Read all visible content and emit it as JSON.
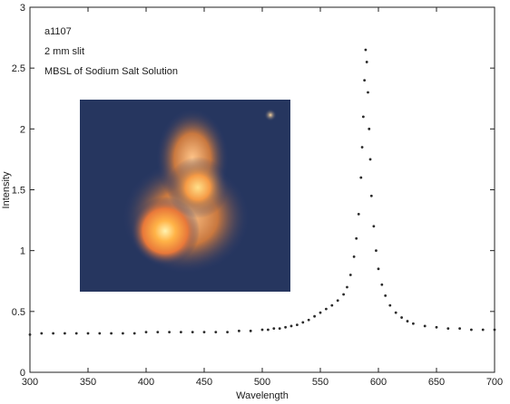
{
  "chart_data": {
    "type": "scatter",
    "xlabel": "Wavelength",
    "ylabel": "Intensity",
    "xlim": [
      300,
      700
    ],
    "ylim": [
      0,
      3
    ],
    "xticks": [
      300,
      350,
      400,
      450,
      500,
      550,
      600,
      650,
      700
    ],
    "yticks": [
      0,
      0.5,
      1,
      1.5,
      2,
      2.5,
      3
    ],
    "ytick_labels": [
      "0",
      "0.5",
      "1",
      "1.5",
      "2",
      "2.5",
      "3"
    ],
    "grid": false,
    "annotations": [
      "a1107",
      "2 mm slit",
      "MBSL of Sodium Salt Solution"
    ],
    "inset_image": "orange glowing bubble photo on dark blue background",
    "series": [
      {
        "points": [
          [
            300,
            0.31
          ],
          [
            310,
            0.32
          ],
          [
            320,
            0.32
          ],
          [
            330,
            0.32
          ],
          [
            340,
            0.32
          ],
          [
            350,
            0.32
          ],
          [
            360,
            0.32
          ],
          [
            370,
            0.32
          ],
          [
            380,
            0.32
          ],
          [
            390,
            0.32
          ],
          [
            400,
            0.33
          ],
          [
            410,
            0.33
          ],
          [
            420,
            0.33
          ],
          [
            430,
            0.33
          ],
          [
            440,
            0.33
          ],
          [
            450,
            0.33
          ],
          [
            460,
            0.33
          ],
          [
            470,
            0.33
          ],
          [
            480,
            0.34
          ],
          [
            490,
            0.34
          ],
          [
            500,
            0.35
          ],
          [
            505,
            0.35
          ],
          [
            510,
            0.36
          ],
          [
            515,
            0.36
          ],
          [
            520,
            0.37
          ],
          [
            525,
            0.38
          ],
          [
            530,
            0.39
          ],
          [
            535,
            0.41
          ],
          [
            540,
            0.43
          ],
          [
            545,
            0.46
          ],
          [
            550,
            0.49
          ],
          [
            555,
            0.52
          ],
          [
            560,
            0.55
          ],
          [
            565,
            0.59
          ],
          [
            570,
            0.64
          ],
          [
            573,
            0.7
          ],
          [
            576,
            0.8
          ],
          [
            579,
            0.95
          ],
          [
            581,
            1.1
          ],
          [
            583,
            1.3
          ],
          [
            585,
            1.6
          ],
          [
            586,
            1.85
          ],
          [
            587,
            2.1
          ],
          [
            588,
            2.4
          ],
          [
            589,
            2.65
          ],
          [
            590,
            2.55
          ],
          [
            591,
            2.3
          ],
          [
            592,
            2.0
          ],
          [
            593,
            1.75
          ],
          [
            594,
            1.45
          ],
          [
            596,
            1.2
          ],
          [
            598,
            1.0
          ],
          [
            600,
            0.85
          ],
          [
            603,
            0.72
          ],
          [
            606,
            0.63
          ],
          [
            610,
            0.55
          ],
          [
            615,
            0.49
          ],
          [
            620,
            0.45
          ],
          [
            625,
            0.42
          ],
          [
            630,
            0.4
          ],
          [
            640,
            0.38
          ],
          [
            650,
            0.37
          ],
          [
            660,
            0.36
          ],
          [
            670,
            0.36
          ],
          [
            680,
            0.35
          ],
          [
            690,
            0.35
          ],
          [
            700,
            0.35
          ]
        ]
      }
    ]
  }
}
